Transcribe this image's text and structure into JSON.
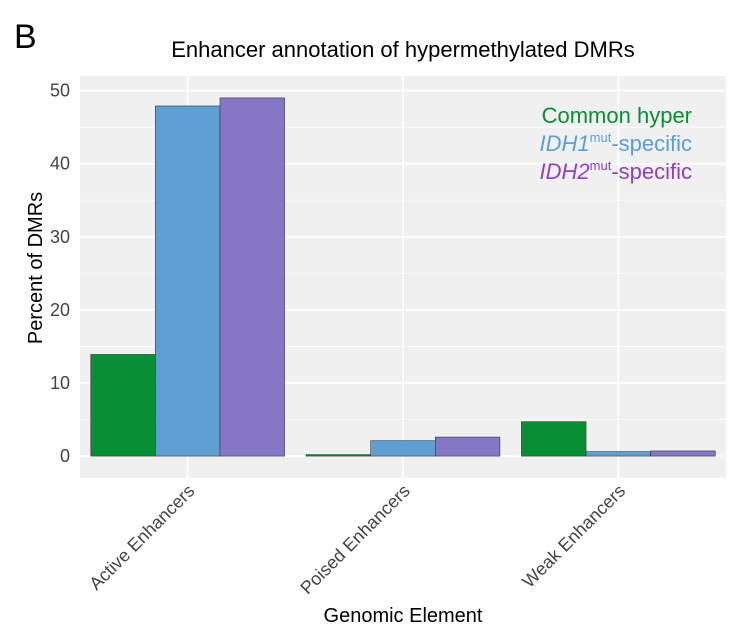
{
  "panel_label": "B",
  "chart_data": {
    "type": "bar",
    "title": "Enhancer annotation of hypermethylated DMRs",
    "xlabel": "Genomic Element",
    "ylabel": "Percent of DMRs",
    "categories": [
      "Active Enhancers",
      "Poised Enhancers",
      "Weak Enhancers"
    ],
    "yticks": [
      "0",
      "10",
      "20",
      "30",
      "40",
      "50"
    ],
    "ylim": [
      -3,
      52
    ],
    "grid": true,
    "legend_position": "top-right",
    "series": [
      {
        "name": "Common hyper",
        "name_main": "Common hyper",
        "name_sup": "",
        "name_suffix": "",
        "color": "#078f35",
        "values": [
          13.9,
          0.2,
          4.7
        ]
      },
      {
        "name": "IDH1mut-specific",
        "name_main": "IDH1",
        "name_sup": "mut",
        "name_suffix": "-specific",
        "color": "#5f9fd4",
        "legend_color": "#5b9fd6",
        "values": [
          47.9,
          2.1,
          0.6
        ]
      },
      {
        "name": "IDH2mut-specific",
        "name_main": "IDH2",
        "name_sup": "mut",
        "name_suffix": "-specific",
        "color": "#8676c6",
        "legend_color": "#9340bf",
        "values": [
          49.0,
          2.6,
          0.7
        ]
      }
    ]
  }
}
